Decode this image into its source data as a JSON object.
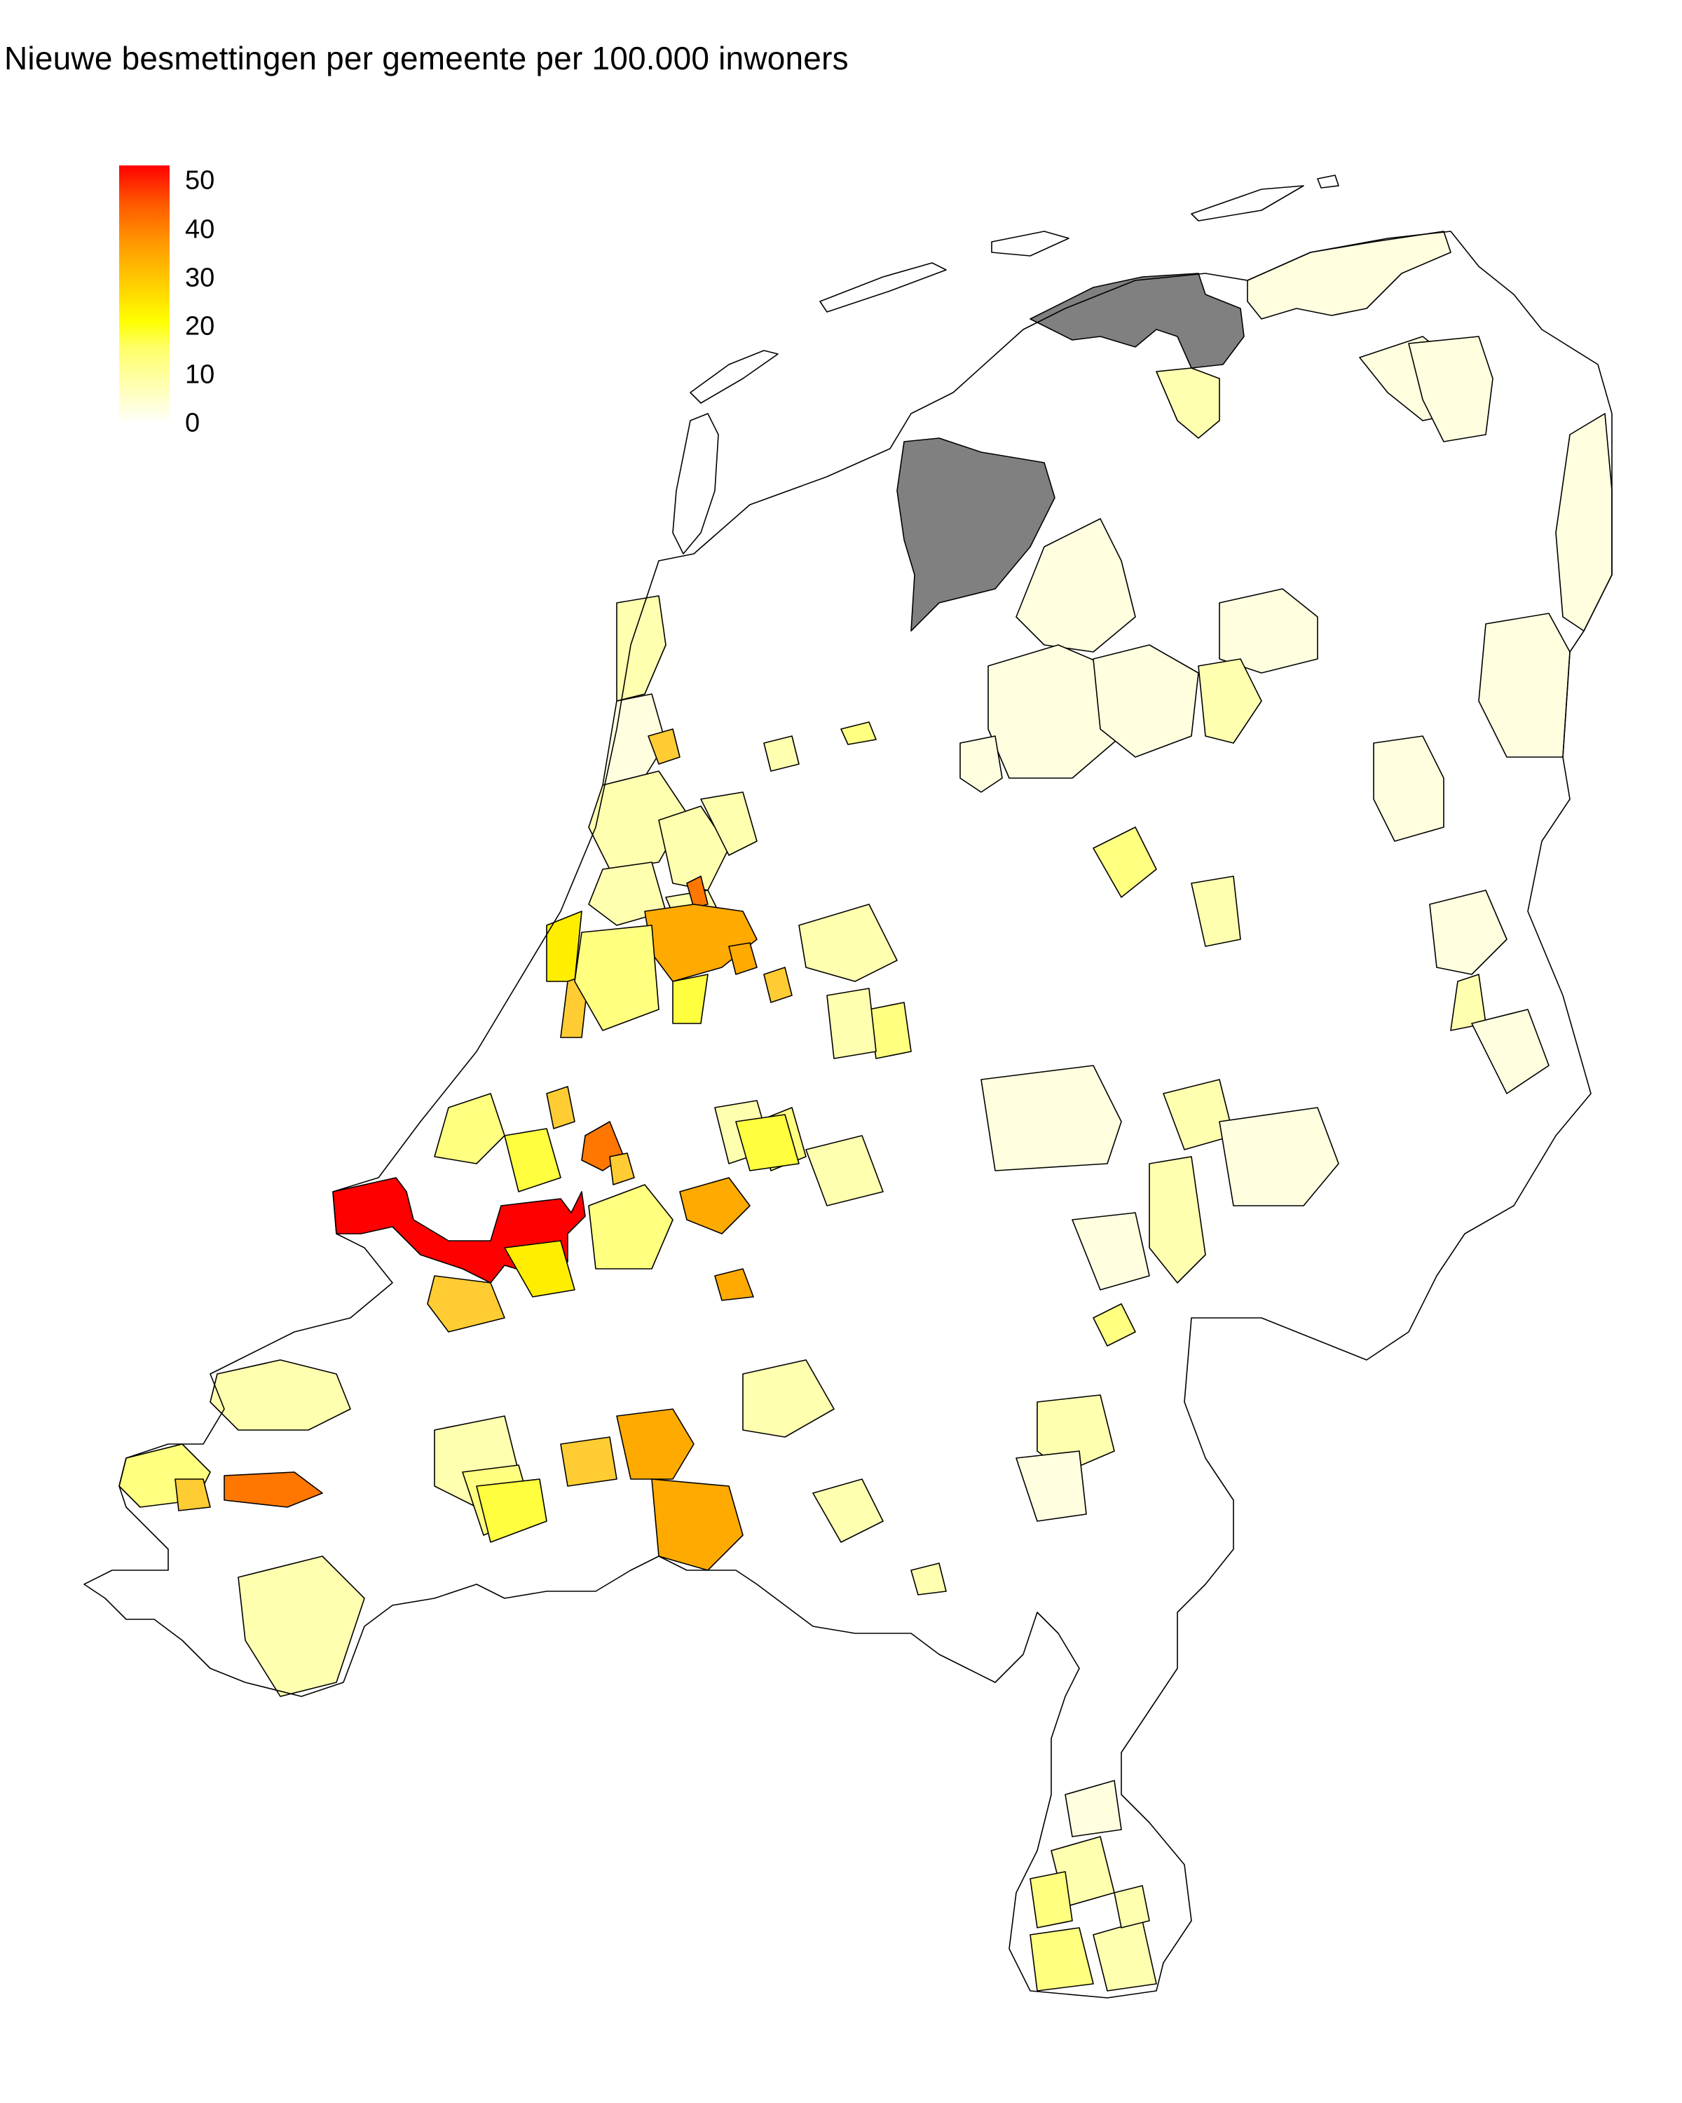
{
  "title": "Nieuwe besmettingen per gemeente per 100.000 inwoners",
  "legend": {
    "ticks": [
      "50",
      "40",
      "30",
      "20",
      "10",
      "0"
    ],
    "colors": {
      "low": "#ffffff",
      "mid": "#ffff00",
      "high": "#ff0000",
      "no_data": "#808080"
    }
  },
  "map_colors": {
    "none": "#ffffff",
    "vlow": "#ffffe0",
    "low": "#ffffb0",
    "lmid": "#ffff80",
    "mid": "#ffff40",
    "yel": "#ffee00",
    "gold": "#ffcc33",
    "orange": "#ffaa00",
    "dorange": "#ff7700",
    "red": "#ff0000",
    "grey": "#808080"
  }
}
